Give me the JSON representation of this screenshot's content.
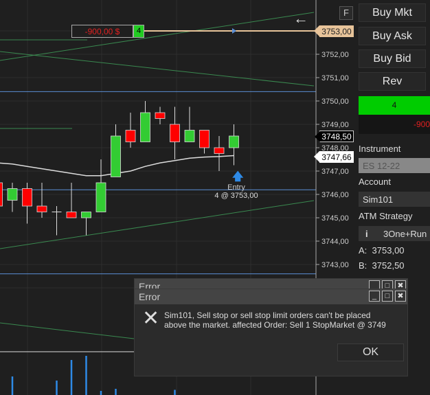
{
  "chart_data": {
    "type": "candlestick",
    "price_axis_ticks": [
      "3752,00",
      "3751,00",
      "3750,00",
      "3749,00",
      "3748,00",
      "3747,00",
      "3746,00",
      "3745,00",
      "3744,00",
      "3743,00"
    ],
    "ylim": [
      3742,
      3754
    ],
    "candles": [
      {
        "o": 3746.5,
        "h": 3746.75,
        "l": 3745.5,
        "c": 3745.5
      },
      {
        "o": 3745.75,
        "h": 3746.5,
        "l": 3745.25,
        "c": 3746.25
      },
      {
        "o": 3746.25,
        "h": 3746.5,
        "l": 3744.75,
        "c": 3745.5
      },
      {
        "o": 3745.5,
        "h": 3746.5,
        "l": 3745.0,
        "c": 3745.25
      },
      {
        "o": 3745.25,
        "h": 3745.5,
        "l": 3744.25,
        "c": 3745.25
      },
      {
        "o": 3745.25,
        "h": 3746.5,
        "l": 3745.0,
        "c": 3745.0
      },
      {
        "o": 3745.0,
        "h": 3745.25,
        "l": 3744.25,
        "c": 3745.25
      },
      {
        "o": 3745.25,
        "h": 3747.5,
        "l": 3745.25,
        "c": 3746.5
      },
      {
        "o": 3746.75,
        "h": 3749.0,
        "l": 3746.75,
        "c": 3748.5
      },
      {
        "o": 3748.75,
        "h": 3749.5,
        "l": 3748.0,
        "c": 3748.25
      },
      {
        "o": 3748.25,
        "h": 3750.0,
        "l": 3748.25,
        "c": 3749.5
      },
      {
        "o": 3749.5,
        "h": 3749.75,
        "l": 3749.0,
        "c": 3749.25
      },
      {
        "o": 3749.0,
        "h": 3749.75,
        "l": 3747.5,
        "c": 3748.25
      },
      {
        "o": 3748.25,
        "h": 3749.75,
        "l": 3748.25,
        "c": 3748.75
      },
      {
        "o": 3748.75,
        "h": 3748.75,
        "l": 3747.75,
        "c": 3748.0
      },
      {
        "o": 3748.0,
        "h": 3748.5,
        "l": 3747.0,
        "c": 3747.75
      },
      {
        "o": 3748.0,
        "h": 3749.0,
        "l": 3747.25,
        "c": 3748.5
      }
    ],
    "moving_average": [
      3747.35,
      3747.3,
      3747.2,
      3747.1,
      3747.0,
      3746.9,
      3746.8,
      3746.8,
      3746.9,
      3747.0,
      3747.2,
      3747.35,
      3747.45,
      3747.55,
      3747.6,
      3747.62,
      3747.66
    ],
    "horizontal_levels": [
      3750.4,
      3746.2,
      3742.6
    ],
    "volume_axis_tick": "1500",
    "volume_bars": [
      {
        "index": 1,
        "value": 900
      },
      {
        "index": 4,
        "value": 700
      },
      {
        "index": 5,
        "value": 1700
      },
      {
        "index": 6,
        "value": 1900
      },
      {
        "index": 7,
        "value": 200
      },
      {
        "index": 8,
        "value": 300
      },
      {
        "index": 12,
        "value": 250
      }
    ],
    "colors": {
      "up": "#33cc33",
      "down": "#ff0000",
      "ma": "#dddddd",
      "level": "#5b8fd6",
      "trend": "#3a8a50",
      "volume": "#2e8ae6",
      "position": "#e8c49a"
    }
  },
  "position": {
    "pnl": "-900,00 $",
    "qty": "4",
    "price_tag": "3753,00"
  },
  "tags": {
    "last": "3748,50",
    "ma": "3747,66"
  },
  "entry": {
    "label": "Entry",
    "detail": "4 @ 3753,00"
  },
  "toolbar": {
    "f_label": "F",
    "back_icon": "arrow-left-icon"
  },
  "panel": {
    "buy_mkt": "Buy Mkt",
    "buy_ask": "Buy Ask",
    "buy_bid": "Buy Bid",
    "rev": "Rev",
    "position_qty": "4",
    "position_pnl": "-900",
    "instrument_label": "Instrument",
    "instrument_value": "ES 12-22",
    "account_label": "Account",
    "account_value": "Sim101",
    "atm_label": "ATM Strategy",
    "atm_info": "i",
    "atm_value": "3One+Run",
    "ask_label": "A:",
    "ask_value": "3753,00",
    "bid_label": "B:",
    "bid_value": "3752,50"
  },
  "dialog_back": {
    "title": "Error"
  },
  "dialog": {
    "title": "Error",
    "line1": "Sim101, Sell stop or sell stop limit orders can't be placed",
    "line2": "above the market. affected Order: Sell 1 StopMarket @ 3749",
    "ok": "OK"
  }
}
